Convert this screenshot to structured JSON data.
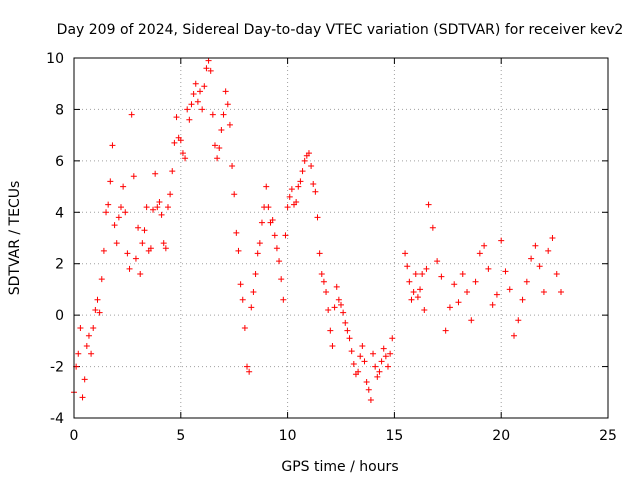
{
  "chart_data": {
    "type": "scatter",
    "title": "Day 209 of 2024, Sidereal Day-to-day VTEC variation (SDTVAR) for receiver kev2",
    "xlabel": "GPS time / hours",
    "ylabel": "SDTVAR / TECUs",
    "xlim": [
      0,
      25
    ],
    "ylim": [
      -4,
      10
    ],
    "x_ticks": [
      0,
      5,
      10,
      15,
      20,
      25
    ],
    "y_ticks": [
      -4,
      -2,
      0,
      2,
      4,
      6,
      8,
      10
    ],
    "x_tick_labels": [
      "0",
      "5",
      "10",
      "15",
      "20",
      "25"
    ],
    "y_tick_labels": [
      "-4",
      "-2",
      "0",
      "2",
      "4",
      "6",
      "8",
      "10"
    ],
    "grid": true,
    "marker": "+",
    "color": "#ff0000",
    "series": [
      {
        "name": "SDTVAR",
        "x": [
          0.0,
          0.1,
          0.2,
          0.3,
          0.4,
          0.5,
          0.6,
          0.7,
          0.8,
          0.9,
          1.0,
          1.1,
          1.2,
          1.3,
          1.4,
          1.5,
          1.6,
          1.7,
          1.8,
          1.9,
          2.0,
          2.1,
          2.2,
          2.3,
          2.4,
          2.5,
          2.6,
          2.7,
          2.8,
          2.9,
          3.0,
          3.1,
          3.2,
          3.3,
          3.4,
          3.5,
          3.6,
          3.7,
          3.8,
          3.9,
          4.0,
          4.1,
          4.2,
          4.3,
          4.4,
          4.5,
          4.6,
          4.7,
          4.8,
          4.9,
          5.0,
          5.1,
          5.2,
          5.3,
          5.4,
          5.5,
          5.6,
          5.7,
          5.8,
          5.9,
          6.0,
          6.1,
          6.2,
          6.3,
          6.4,
          6.5,
          6.6,
          6.7,
          6.8,
          6.9,
          7.0,
          7.1,
          7.2,
          7.3,
          7.4,
          7.5,
          7.6,
          7.7,
          7.8,
          7.9,
          8.0,
          8.1,
          8.2,
          8.3,
          8.4,
          8.5,
          8.6,
          8.7,
          8.8,
          8.9,
          9.0,
          9.1,
          9.2,
          9.3,
          9.4,
          9.5,
          9.6,
          9.7,
          9.8,
          9.9,
          10.0,
          10.1,
          10.2,
          10.3,
          10.4,
          10.5,
          10.6,
          10.7,
          10.8,
          10.9,
          11.0,
          11.1,
          11.2,
          11.3,
          11.4,
          11.5,
          11.6,
          11.7,
          11.8,
          11.9,
          12.0,
          12.1,
          12.2,
          12.3,
          12.4,
          12.5,
          12.6,
          12.7,
          12.8,
          12.9,
          13.0,
          13.1,
          13.2,
          13.3,
          13.4,
          13.5,
          13.6,
          13.7,
          13.8,
          13.9,
          14.0,
          14.1,
          14.2,
          14.3,
          14.4,
          14.5,
          14.6,
          14.7,
          14.8,
          14.9,
          15.5,
          15.6,
          15.7,
          15.8,
          15.9,
          16.0,
          16.1,
          16.2,
          16.3,
          16.4,
          16.5,
          16.6,
          16.8,
          17.0,
          17.2,
          17.4,
          17.6,
          17.8,
          18.0,
          18.2,
          18.4,
          18.6,
          18.8,
          19.0,
          19.2,
          19.4,
          19.6,
          19.8,
          20.0,
          20.2,
          20.4,
          20.6,
          20.8,
          21.0,
          21.2,
          21.4,
          21.6,
          21.8,
          22.0,
          22.2,
          22.4,
          22.6,
          22.8
        ],
        "y": [
          -3.0,
          -2.0,
          -1.5,
          -0.5,
          -3.2,
          -2.5,
          -1.2,
          -0.8,
          -1.5,
          -0.5,
          0.2,
          0.6,
          0.1,
          1.4,
          2.5,
          4.0,
          4.3,
          5.2,
          6.6,
          3.5,
          2.8,
          3.8,
          4.2,
          5.0,
          4.0,
          2.4,
          1.8,
          7.8,
          5.4,
          2.2,
          3.4,
          1.6,
          2.8,
          3.3,
          4.2,
          2.5,
          2.6,
          4.1,
          5.5,
          4.2,
          4.4,
          3.9,
          2.8,
          2.6,
          4.2,
          4.7,
          5.6,
          6.7,
          7.7,
          6.9,
          6.8,
          6.3,
          6.1,
          8.0,
          7.6,
          8.2,
          8.6,
          9.0,
          8.3,
          8.7,
          8.0,
          8.9,
          9.6,
          9.9,
          9.5,
          7.8,
          6.6,
          6.1,
          6.5,
          7.2,
          7.8,
          8.7,
          8.2,
          7.4,
          5.8,
          4.7,
          3.2,
          2.5,
          1.2,
          0.6,
          -0.5,
          -2.0,
          -2.2,
          0.3,
          0.9,
          1.6,
          2.4,
          2.8,
          3.6,
          4.2,
          5.0,
          4.2,
          3.6,
          3.7,
          3.1,
          2.6,
          2.1,
          1.4,
          0.6,
          3.1,
          4.2,
          4.6,
          4.9,
          4.3,
          4.4,
          5.0,
          5.2,
          5.6,
          6.0,
          6.2,
          6.3,
          5.8,
          5.1,
          4.8,
          3.8,
          2.4,
          1.6,
          1.3,
          0.9,
          0.2,
          -0.6,
          -1.2,
          0.3,
          1.1,
          0.6,
          0.4,
          0.1,
          -0.3,
          -0.6,
          -0.9,
          -1.4,
          -1.9,
          -2.3,
          -2.2,
          -1.6,
          -1.2,
          -1.8,
          -2.6,
          -2.9,
          -3.3,
          -1.5,
          -2.0,
          -2.4,
          -2.2,
          -1.8,
          -1.3,
          -1.6,
          -2.0,
          -1.5,
          -0.9,
          2.4,
          1.9,
          1.3,
          0.6,
          0.9,
          1.6,
          0.7,
          1.0,
          1.6,
          0.2,
          1.8,
          4.3,
          3.4,
          2.1,
          1.5,
          -0.6,
          0.3,
          1.2,
          0.5,
          1.6,
          0.9,
          -0.2,
          1.3,
          2.4,
          2.7,
          1.8,
          0.4,
          0.8,
          2.9,
          1.7,
          1.0,
          -0.8,
          -0.2,
          0.6,
          1.3,
          2.2,
          2.7,
          1.9,
          0.9,
          2.5,
          3.0,
          1.6,
          0.9
        ]
      }
    ]
  }
}
